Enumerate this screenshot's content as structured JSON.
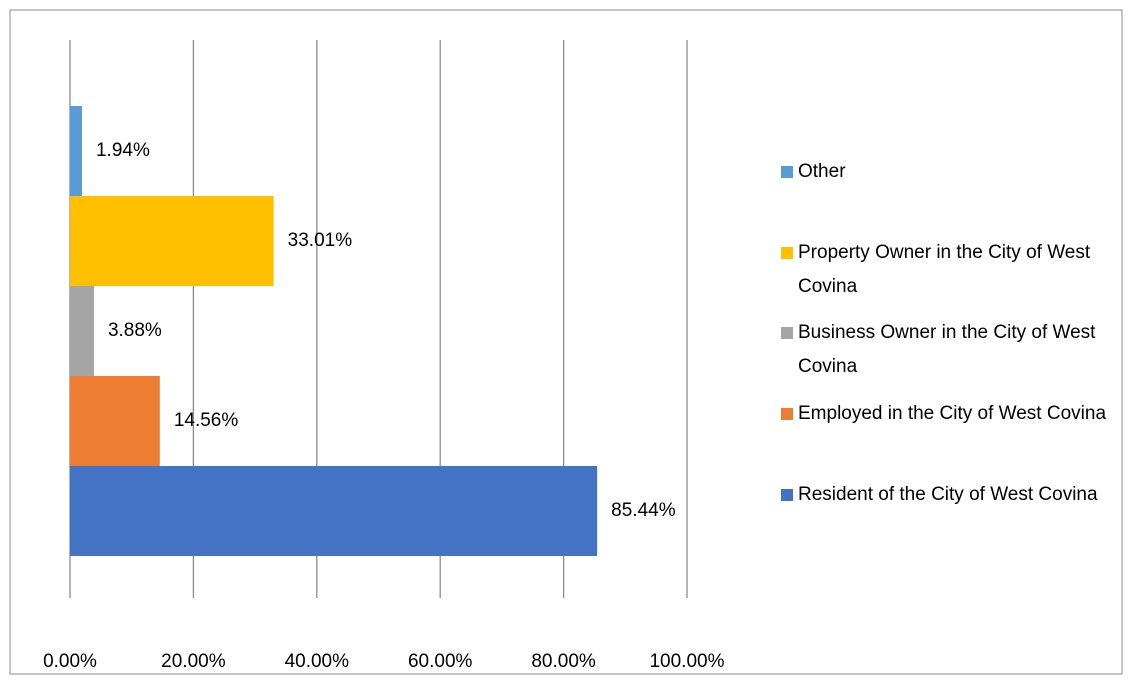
{
  "chart_data": {
    "type": "bar",
    "orientation": "horizontal",
    "series": [
      {
        "name": "Resident of the City of West Covina",
        "color": "#4472c4",
        "values": [
          85.44
        ],
        "value_labels": [
          "85.44%"
        ]
      },
      {
        "name": "Employed in the City of West Covina",
        "color": "#ed7d31",
        "values": [
          14.56
        ],
        "value_labels": [
          "14.56%"
        ]
      },
      {
        "name": "Business Owner in the City of West Covina",
        "color": "#a5a5a5",
        "values": [
          3.88
        ],
        "value_labels": [
          "3.88%"
        ]
      },
      {
        "name": "Property Owner in the City of West Covina",
        "color": "#ffc000",
        "values": [
          33.01
        ],
        "value_labels": [
          "33.01%"
        ]
      },
      {
        "name": "Other",
        "color": "#5b9bd5",
        "values": [
          1.94
        ],
        "value_labels": [
          "1.94%"
        ]
      }
    ],
    "xlim": [
      0,
      100
    ],
    "xticks": [
      {
        "value": 0,
        "label": "0.00%"
      },
      {
        "value": 20,
        "label": "20.00%"
      },
      {
        "value": 40,
        "label": "40.00%"
      },
      {
        "value": 60,
        "label": "60.00%"
      },
      {
        "value": 80,
        "label": "80.00%"
      },
      {
        "value": 100,
        "label": "100.00%"
      }
    ],
    "grid": true,
    "legend": "right"
  }
}
